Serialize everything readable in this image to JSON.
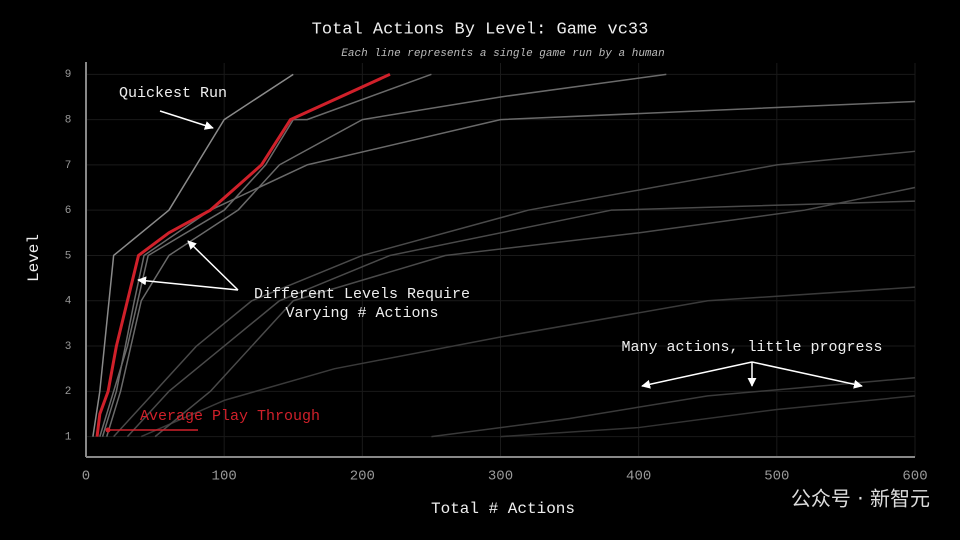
{
  "chart_data": {
    "type": "line",
    "title": "Total Actions By Level: Game vc33",
    "subtitle": "Each line represents a single game run by a human",
    "x_label": "Total # Actions",
    "y_label": "Level",
    "xlim": [
      0,
      600
    ],
    "xticks": [
      0,
      100,
      200,
      300,
      400,
      500,
      600
    ],
    "ylim": [
      0.55,
      9.25
    ],
    "yticks": [
      1,
      2,
      3,
      4,
      5,
      6,
      7,
      8,
      9
    ],
    "series": [
      {
        "color": "#8a8a8a",
        "x": [
          5,
          10,
          20,
          60,
          80,
          100,
          150
        ],
        "values": [
          1,
          2,
          5,
          6,
          7,
          8,
          9
        ]
      },
      {
        "color": "#6a6a6a",
        "x": [
          10,
          20,
          30,
          45,
          100,
          130,
          150,
          160,
          250
        ],
        "values": [
          1,
          2,
          3,
          5,
          6,
          7,
          8,
          8,
          9
        ]
      },
      {
        "color": "#6a6a6a",
        "x": [
          15,
          25,
          40,
          60,
          110,
          140,
          200,
          300,
          420
        ],
        "values": [
          1,
          2,
          4,
          5,
          6,
          7,
          8,
          8.5,
          9
        ]
      },
      {
        "color": "#4a4a4a",
        "x": [
          20,
          50,
          80,
          120,
          200,
          320,
          500,
          600
        ],
        "values": [
          1,
          2,
          3,
          4,
          5,
          6,
          7,
          7.3
        ]
      },
      {
        "color": "#3a3a3a",
        "x": [
          40,
          100,
          180,
          300,
          450,
          600
        ],
        "values": [
          1,
          1.8,
          2.5,
          3.2,
          4,
          4.3
        ]
      },
      {
        "color": "#3a3a3a",
        "x": [
          250,
          350,
          450,
          600
        ],
        "values": [
          1,
          1.4,
          1.9,
          2.3
        ]
      },
      {
        "color": "#4a4a4a",
        "x": [
          50,
          90,
          150,
          260,
          400,
          520,
          600
        ],
        "values": [
          1,
          2,
          4,
          5,
          5.5,
          6,
          6.5
        ]
      },
      {
        "color": "#6a6a6a",
        "x": [
          12,
          22,
          35,
          42,
          90,
          160,
          300,
          600
        ],
        "values": [
          1,
          2,
          4,
          5,
          6,
          7,
          8,
          8.4
        ]
      },
      {
        "color": "#333333",
        "x": [
          300,
          400,
          500,
          600
        ],
        "values": [
          1,
          1.2,
          1.6,
          1.9
        ]
      },
      {
        "color": "#4a4a4a",
        "x": [
          30,
          60,
          100,
          140,
          220,
          380,
          600
        ],
        "values": [
          1,
          2,
          3,
          4,
          5,
          6,
          6.2
        ]
      },
      {
        "color": "#d0202a",
        "x": [
          8,
          10,
          16,
          22,
          30,
          38,
          60,
          90,
          127,
          148,
          220
        ],
        "values": [
          1,
          1.5,
          2,
          3,
          4,
          5,
          5.5,
          6,
          7,
          8,
          9
        ]
      }
    ],
    "annotations": [
      "Quickest Run",
      "Different Levels Require",
      "Varying # Actions",
      "Many actions, little progress",
      "Average Play Through"
    ],
    "watermark": "公众号 · 新智元"
  }
}
